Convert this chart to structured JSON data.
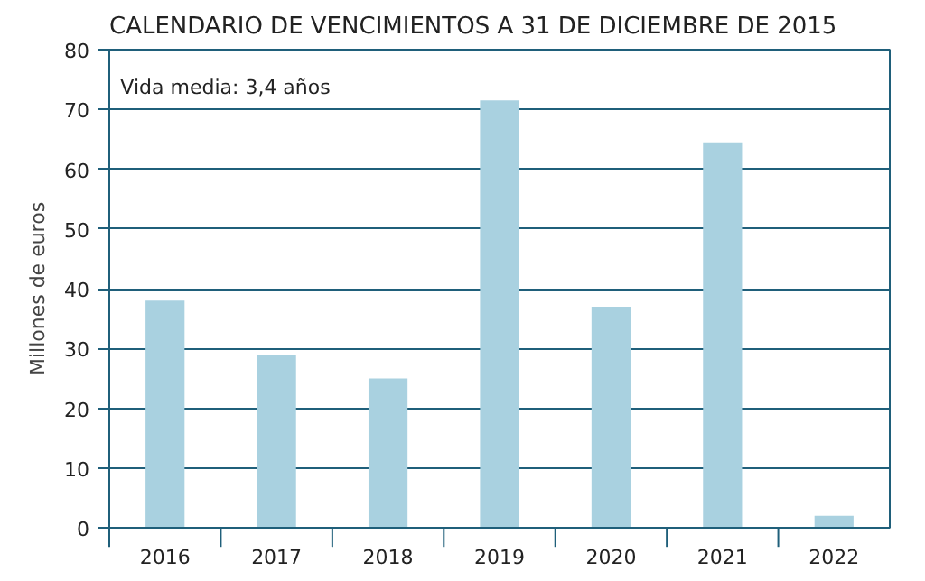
{
  "chart_data": {
    "type": "bar",
    "title": "CALENDARIO DE VENCIMIENTOS A 31 DE DICIEMBRE DE 2015",
    "ylabel": "Millones de euros",
    "categories": [
      "2016",
      "2017",
      "2018",
      "2019",
      "2020",
      "2021",
      "2022"
    ],
    "values": [
      38,
      29,
      25,
      71.5,
      37,
      64.5,
      2
    ],
    "color": "#a9d1e0",
    "ylim": [
      0,
      80
    ],
    "yticks": [
      0,
      10,
      20,
      30,
      40,
      50,
      60,
      70,
      80
    ],
    "grid": "y",
    "annotations": [
      "Vida media: 3,4 años"
    ]
  }
}
